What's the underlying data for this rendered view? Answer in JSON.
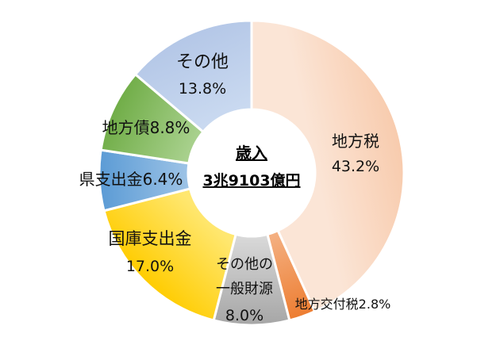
{
  "chart_data": {
    "type": "pie",
    "center_label": {
      "line1": "歳入",
      "line2": "3兆9103億円"
    },
    "slices": [
      {
        "name": "地方税",
        "value": 43.2,
        "value_text": "43.2%",
        "color_light": "#fbe5d6",
        "color_dark": "#f8cbad"
      },
      {
        "name": "地方交付税",
        "value": 2.8,
        "label_text": "地方交付税2.8%",
        "color_light": "#f4b183",
        "color_dark": "#ed7d31"
      },
      {
        "name": "その他の一般財源",
        "value": 8.0,
        "name_lines": [
          "その他の",
          "一般財源"
        ],
        "value_text": "8.0%",
        "color_light": "#d9d9d9",
        "color_dark": "#a6a6a6"
      },
      {
        "name": "国庫支出金",
        "value": 17.0,
        "value_text": "17.0%",
        "color_light": "#ffe770",
        "color_dark": "#ffcc00"
      },
      {
        "name": "県支出金",
        "value": 6.4,
        "label_text": "県支出金6.4%",
        "color_light": "#9dc3e6",
        "color_dark": "#5b9bd5"
      },
      {
        "name": "地方債",
        "value": 8.8,
        "label_text": "地方債8.8%",
        "color_light": "#a9d18e",
        "color_dark": "#70ad47"
      },
      {
        "name": "その他",
        "value": 13.8,
        "value_text": "13.8%",
        "color_light": "#c9d9f0",
        "color_dark": "#b4c7e7"
      }
    ]
  }
}
